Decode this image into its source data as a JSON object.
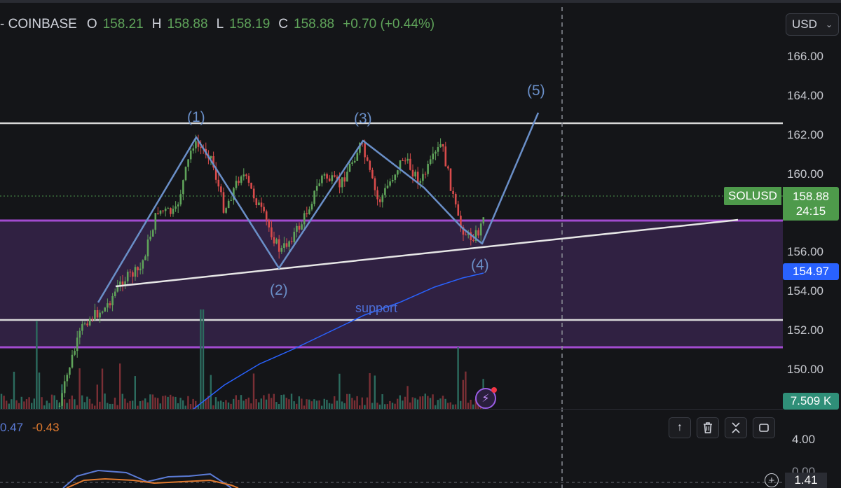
{
  "header": {
    "exchange": "- COINBASE",
    "open_label": "O",
    "open": "158.21",
    "high_label": "H",
    "high": "158.88",
    "low_label": "L",
    "low": "158.19",
    "close_label": "C",
    "close": "158.88",
    "change": "+0.70 (+0.44%)"
  },
  "currency": {
    "selected": "USD",
    "icon": "chevron-down-icon"
  },
  "price_axis": [
    "166.00",
    "164.00",
    "162.00",
    "160.00",
    "156.00",
    "154.00",
    "152.00",
    "150.00"
  ],
  "symbol_tag": "SOLUSD",
  "last_price": {
    "price": "158.88",
    "countdown": "24:15"
  },
  "ma_price": "154.97",
  "volume_label": "7.509 K",
  "waves": [
    "(1)",
    "(2)",
    "(3)",
    "(4)",
    "(5)"
  ],
  "support_text": "support",
  "indicator": {
    "value_a": "0.47",
    "value_b": "-0.43"
  },
  "pane_tools": [
    "arrow-up-icon",
    "trash-icon",
    "collapse-icon",
    "maximize-icon"
  ],
  "osc_axis": {
    "top": "4.00",
    "partial": "0.00",
    "current": "1.41"
  },
  "colors": {
    "background": "#141518",
    "up": "#5fa35a",
    "down": "#d94b4b",
    "zone": "#a24bd0",
    "wave": "#6a8fc8",
    "ma": "#2962ff"
  }
}
